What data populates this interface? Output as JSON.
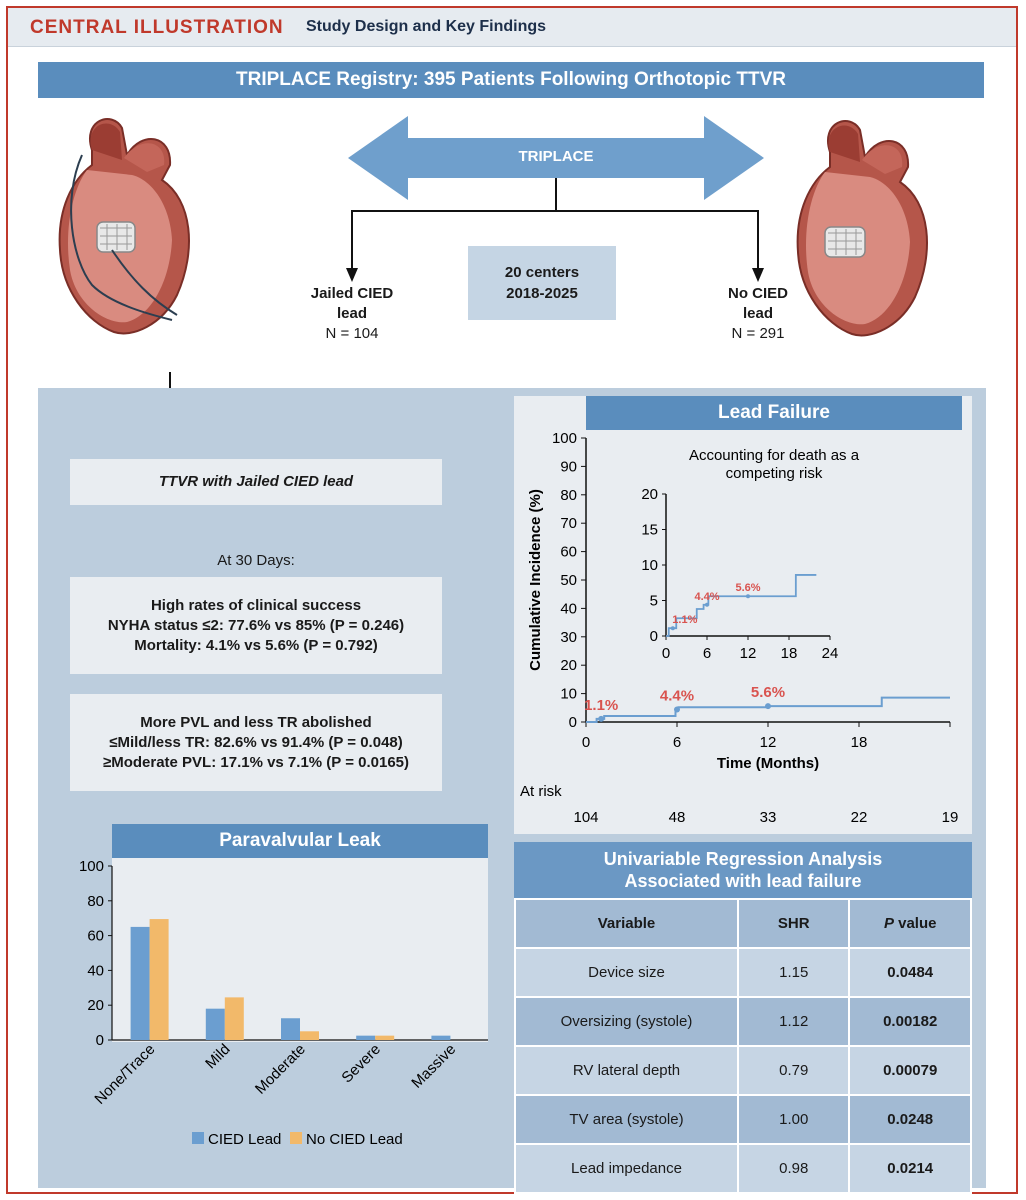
{
  "header": {
    "central": "CENTRAL ILLUSTRATION",
    "subtitle": "Study Design and Key Findings"
  },
  "registry_title": "TRIPLACE Registry: 395 Patients Following Orthotopic TTVR",
  "arrow_label": "TRIPLACE",
  "centers": {
    "line1": "20 centers",
    "line2": "2018-2025"
  },
  "left_group": {
    "line1": "Jailed CIED",
    "line2": "lead",
    "n": "N = 104"
  },
  "right_group": {
    "line1": "No CIED",
    "line2": "lead",
    "n": "N = 291"
  },
  "ttvr_box": "TTVR with Jailed CIED lead",
  "at30": "At 30 Days:",
  "clinical": {
    "title": "High rates of clinical success",
    "line1": "NYHA status ≤2: 77.6% vs 85% (P = 0.246)",
    "line2": "Mortality: 4.1% vs 5.6% (P = 0.792)"
  },
  "pvl": {
    "title": "More PVL and less TR abolished",
    "line1_pre": "≤Mild/less TR: 82.6% vs 91.4% (P = ",
    "line1_bold": "0.048",
    "line2_pre": "≥Moderate PVL: 17.1% vs 7.1% (P = ",
    "line2_bold": "0.0165"
  },
  "colors": {
    "cied": "#6b9ed0",
    "no_cied": "#f2b96a",
    "curve": "#6b9ed0",
    "annot": "#d9534f"
  },
  "chart_data": [
    {
      "type": "line",
      "title": "Lead Failure",
      "ylabel": "Cumulative Incidence (%)",
      "xlabel": "Time (Months)",
      "ylim": [
        0,
        100
      ],
      "xlim": [
        0,
        24
      ],
      "yticks": [
        0,
        10,
        20,
        30,
        40,
        50,
        60,
        70,
        80,
        90,
        100
      ],
      "xticks": [
        0,
        6,
        12,
        18
      ],
      "step_x": [
        0,
        0.7,
        1.2,
        5,
        5.9,
        6.1,
        12,
        19.5,
        24
      ],
      "step_y": [
        0,
        1.1,
        2.1,
        2.1,
        4.4,
        5.2,
        5.6,
        8.6,
        8.6
      ],
      "annotations": [
        {
          "x": 1,
          "y": 1.1,
          "label": "1.1%"
        },
        {
          "x": 6,
          "y": 4.4,
          "label": "4.4%"
        },
        {
          "x": 12,
          "y": 5.6,
          "label": "5.6%"
        }
      ],
      "at_risk_label": "At risk",
      "at_risk": [
        "104",
        "48",
        "33",
        "22",
        "19"
      ],
      "inset": {
        "title_line1": "Accounting for death as a",
        "title_line2": "competing risk",
        "ylim": [
          0,
          20
        ],
        "xlim": [
          0,
          24
        ],
        "yticks": [
          0,
          5,
          10,
          15,
          20
        ],
        "xticks": [
          0,
          6,
          12,
          18,
          24
        ],
        "step_x": [
          0,
          0.4,
          1.5,
          4.5,
          5.5,
          6.2,
          19,
          22
        ],
        "step_y": [
          0,
          1.1,
          2.5,
          3.8,
          4.4,
          5.6,
          8.6,
          8.6
        ],
        "annotations": [
          {
            "x": 1,
            "y": 1.1,
            "label": "1.1%"
          },
          {
            "x": 6,
            "y": 4.4,
            "label": "4.4%"
          },
          {
            "x": 12,
            "y": 5.6,
            "label": "5.6%"
          }
        ]
      }
    },
    {
      "type": "bar",
      "title": "Paravalvular Leak",
      "categories": [
        "None/Trace",
        "Mild",
        "Moderate",
        "Severe",
        "Massive"
      ],
      "ylim": [
        0,
        100
      ],
      "yticks": [
        0,
        20,
        40,
        60,
        80,
        100
      ],
      "series": [
        {
          "name": "CIED Lead",
          "values": [
            65,
            18,
            12.5,
            2.5,
            2.5
          ]
        },
        {
          "name": "No CIED Lead",
          "values": [
            69.5,
            24.5,
            5,
            2.5,
            0
          ]
        }
      ]
    }
  ],
  "regression": {
    "title_line1": "Univariable Regression Analysis",
    "title_line2": "Associated with lead failure",
    "headers": {
      "variable": "Variable",
      "shr": "SHR",
      "p_italic": "P",
      "p_rest": " value"
    },
    "rows": [
      {
        "variable": "Device size",
        "shr": "1.15",
        "p": "0.0484"
      },
      {
        "variable": "Oversizing (systole)",
        "shr": "1.12",
        "p": "0.00182"
      },
      {
        "variable": "RV lateral depth",
        "shr": "0.79",
        "p": "0.00079"
      },
      {
        "variable": "TV area (systole)",
        "shr": "1.00",
        "p": "0.0248"
      },
      {
        "variable": "Lead impedance",
        "shr": "0.98",
        "p": "0.0214"
      }
    ]
  }
}
